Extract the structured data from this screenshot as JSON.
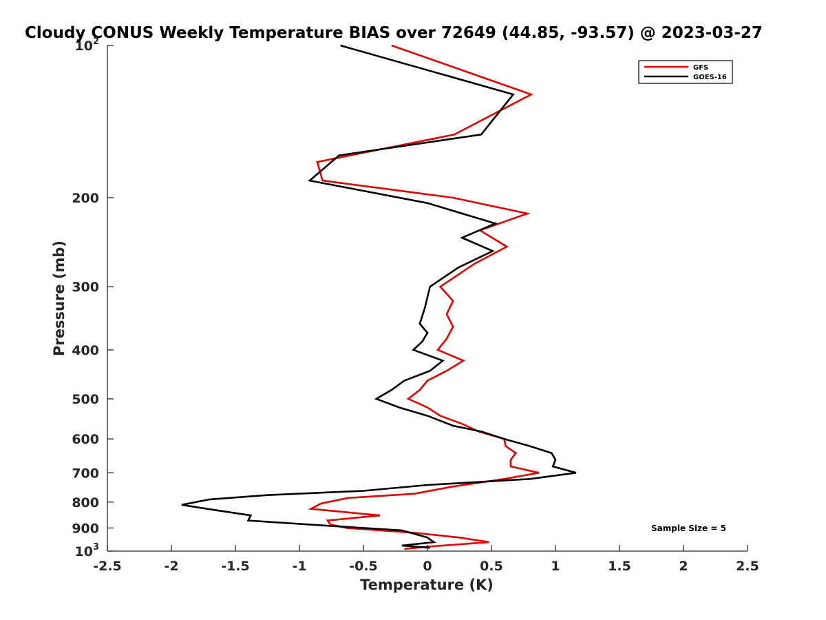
{
  "chart_data": {
    "type": "line",
    "title": "Cloudy CONUS Weekly Temperature BIAS over 72649 (44.85, -93.57) @ 2023-03-27",
    "xlabel": "Temperature (K)",
    "ylabel": "Pressure (mb)",
    "xlim": [
      -2.5,
      2.5
    ],
    "ylim": [
      100,
      1000
    ],
    "y_scale": "log",
    "y_reversed": true,
    "grid": false,
    "legend_position": "top-right",
    "x_ticks": [
      "-2.5",
      "-2",
      "-1.5",
      "-1",
      "-0.5",
      "0",
      "0.5",
      "1",
      "1.5",
      "2",
      "2.5"
    ],
    "y_tick_labels": [
      {
        "value": 100,
        "base": "10",
        "exp": "2"
      },
      {
        "value": 200,
        "base": "200",
        "exp": ""
      },
      {
        "value": 300,
        "base": "300",
        "exp": ""
      },
      {
        "value": 400,
        "base": "400",
        "exp": ""
      },
      {
        "value": 500,
        "base": "500",
        "exp": ""
      },
      {
        "value": 600,
        "base": "600",
        "exp": ""
      },
      {
        "value": 700,
        "base": "700",
        "exp": ""
      },
      {
        "value": 800,
        "base": "800",
        "exp": ""
      },
      {
        "value": 900,
        "base": "900",
        "exp": ""
      },
      {
        "value": 1000,
        "base": "10",
        "exp": "3"
      }
    ],
    "series": [
      {
        "name": "GFS",
        "color": "#e00000",
        "points": [
          [
            -0.28,
            100
          ],
          [
            0.81,
            125
          ],
          [
            0.21,
            150
          ],
          [
            -0.86,
            170
          ],
          [
            -0.82,
            185
          ],
          [
            0.2,
            200
          ],
          [
            0.78,
            215
          ],
          [
            0.41,
            232
          ],
          [
            0.62,
            250
          ],
          [
            0.37,
            270
          ],
          [
            0.1,
            300
          ],
          [
            0.2,
            320
          ],
          [
            0.15,
            340
          ],
          [
            0.2,
            360
          ],
          [
            0.15,
            380
          ],
          [
            0.08,
            400
          ],
          [
            0.28,
            420
          ],
          [
            0.15,
            440
          ],
          [
            0.0,
            460
          ],
          [
            -0.06,
            480
          ],
          [
            -0.15,
            500
          ],
          [
            0.0,
            520
          ],
          [
            0.1,
            540
          ],
          [
            0.27,
            560
          ],
          [
            0.4,
            580
          ],
          [
            0.6,
            600
          ],
          [
            0.61,
            620
          ],
          [
            0.69,
            640
          ],
          [
            0.65,
            660
          ],
          [
            0.65,
            680
          ],
          [
            0.87,
            700
          ],
          [
            0.6,
            720
          ],
          [
            0.2,
            745
          ],
          [
            -0.1,
            770
          ],
          [
            -0.62,
            785
          ],
          [
            -0.83,
            805
          ],
          [
            -0.91,
            825
          ],
          [
            -0.37,
            850
          ],
          [
            -0.78,
            870
          ],
          [
            -0.76,
            885
          ],
          [
            -0.63,
            900
          ],
          [
            -0.1,
            920
          ],
          [
            0.25,
            940
          ],
          [
            0.48,
            960
          ],
          [
            0.0,
            980
          ],
          [
            -0.18,
            990
          ]
        ]
      },
      {
        "name": "GOES-16",
        "color": "#000000",
        "points": [
          [
            -0.68,
            100
          ],
          [
            0.67,
            125
          ],
          [
            0.42,
            150
          ],
          [
            -0.69,
            165
          ],
          [
            -0.92,
            185
          ],
          [
            0.0,
            205
          ],
          [
            0.53,
            225
          ],
          [
            0.27,
            240
          ],
          [
            0.51,
            255
          ],
          [
            0.24,
            275
          ],
          [
            0.02,
            300
          ],
          [
            -0.02,
            330
          ],
          [
            -0.06,
            355
          ],
          [
            0.0,
            370
          ],
          [
            -0.04,
            385
          ],
          [
            -0.11,
            400
          ],
          [
            0.12,
            420
          ],
          [
            0.02,
            440
          ],
          [
            -0.18,
            460
          ],
          [
            -0.28,
            480
          ],
          [
            -0.4,
            500
          ],
          [
            -0.22,
            520
          ],
          [
            0.0,
            540
          ],
          [
            0.2,
            565
          ],
          [
            0.42,
            580
          ],
          [
            0.6,
            600
          ],
          [
            0.8,
            620
          ],
          [
            0.97,
            640
          ],
          [
            1.0,
            660
          ],
          [
            0.98,
            680
          ],
          [
            1.16,
            700
          ],
          [
            0.8,
            720
          ],
          [
            0.0,
            740
          ],
          [
            -0.5,
            760
          ],
          [
            -1.25,
            775
          ],
          [
            -1.7,
            790
          ],
          [
            -1.92,
            810
          ],
          [
            -1.72,
            825
          ],
          [
            -1.38,
            850
          ],
          [
            -1.4,
            870
          ],
          [
            -0.8,
            890
          ],
          [
            -0.2,
            910
          ],
          [
            0.0,
            940
          ],
          [
            0.05,
            960
          ],
          [
            -0.2,
            975
          ],
          [
            0.02,
            985
          ]
        ]
      }
    ],
    "annotations": [
      "Sample Size = 5"
    ]
  }
}
